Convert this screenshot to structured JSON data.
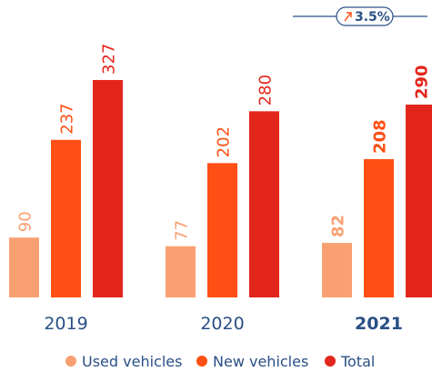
{
  "chart_data": {
    "type": "bar",
    "categories": [
      "2019",
      "2020",
      "2021"
    ],
    "series": [
      {
        "name": "Used vehicles",
        "color": "#f9a072",
        "values": [
          90,
          77,
          82
        ]
      },
      {
        "name": "New vehicles",
        "color": "#ff4f14",
        "values": [
          237,
          202,
          208
        ]
      },
      {
        "name": "Total",
        "color": "#e3261c",
        "values": [
          327,
          280,
          290
        ]
      }
    ],
    "annotation": "3.5%",
    "legend": "bottom"
  }
}
